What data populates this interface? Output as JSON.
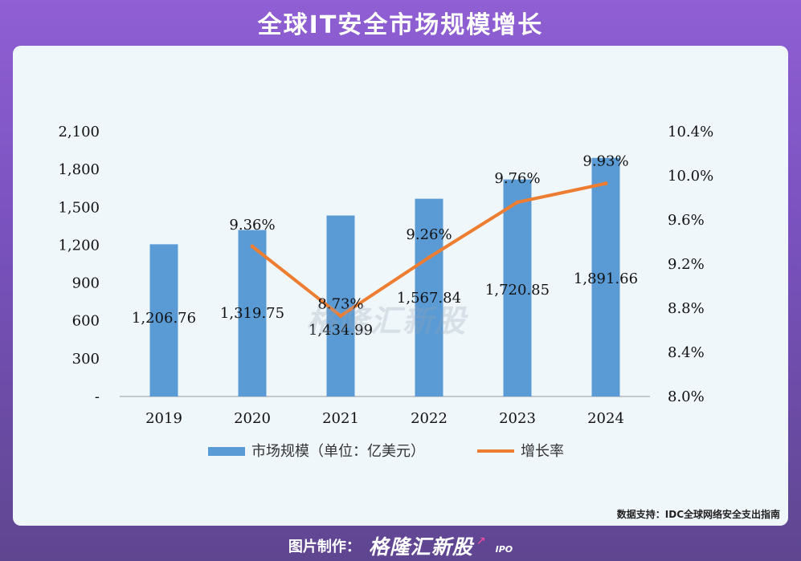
{
  "title": "全球IT安全市场规模增长",
  "source_text": "数据支持：IDC全球网络安全支出指南",
  "watermark": "格隆汇新股",
  "footer": {
    "prefix": "图片制作：",
    "logo": "格隆汇新股",
    "logo_suffix": "IPO"
  },
  "colors": {
    "bar": "#5b9bd5",
    "line": "#ed7d31",
    "card_bg": "#f0f7fb"
  },
  "chart_data": {
    "type": "bar",
    "categories": [
      "2019",
      "2020",
      "2021",
      "2022",
      "2023",
      "2024"
    ],
    "series": [
      {
        "name": "市场规模（单位：亿美元）",
        "type": "bar",
        "axis": "left",
        "values": [
          1206.76,
          1319.75,
          1434.99,
          1567.84,
          1720.85,
          1891.66
        ],
        "value_labels": [
          "1,206.76",
          "1,319.75",
          "1,434.99",
          "1,567.84",
          "1,720.85",
          "1,891.66"
        ]
      },
      {
        "name": "增长率",
        "type": "line",
        "axis": "right",
        "values": [
          null,
          9.36,
          8.73,
          9.26,
          9.76,
          9.93
        ],
        "value_labels": [
          "",
          "9.36%",
          "8.73%",
          "9.26%",
          "9.76%",
          "9.93%"
        ]
      }
    ],
    "y_left": {
      "ylim": [
        0,
        2100
      ],
      "ticks": [
        0,
        300,
        600,
        900,
        1200,
        1500,
        1800,
        2100
      ],
      "tick_labels": [
        "-",
        "300",
        "600",
        "900",
        "1,200",
        "1,500",
        "1,800",
        "2,100"
      ]
    },
    "y_right": {
      "ylim": [
        8.0,
        10.4
      ],
      "ticks": [
        8.0,
        8.4,
        8.8,
        9.2,
        9.6,
        10.0,
        10.4
      ],
      "tick_labels": [
        "8.0%",
        "8.4%",
        "8.8%",
        "9.2%",
        "9.6%",
        "10.0%",
        "10.4%"
      ]
    },
    "grid": false,
    "legend": "bottom"
  }
}
